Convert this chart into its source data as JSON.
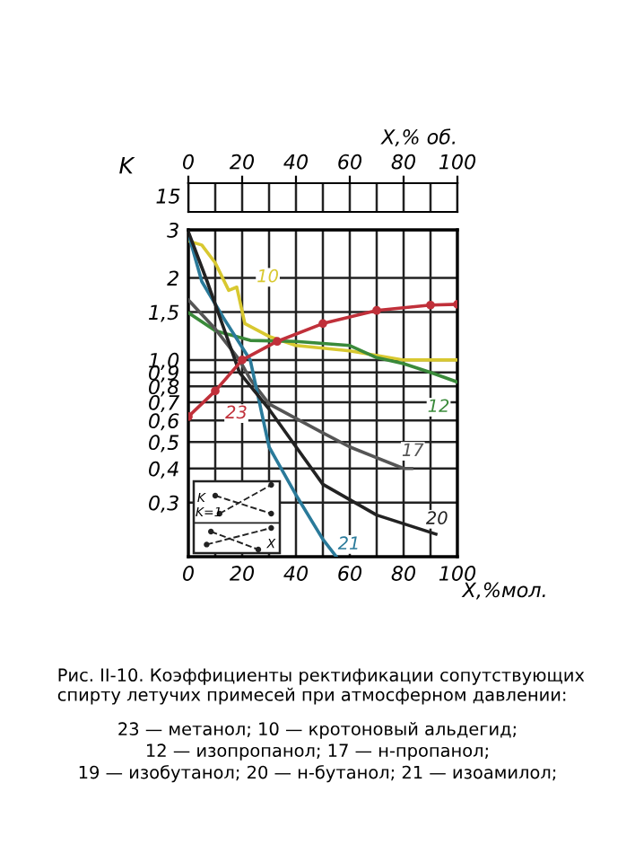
{
  "chart_data": {
    "type": "line",
    "xlabel": "X,%мол.",
    "ylabel": "K",
    "x2label": "X,% об.",
    "log": "y",
    "grid": true,
    "xlim": [
      0,
      100
    ],
    "ylim": [
      0.19,
      3
    ],
    "xticks": [
      0,
      {
        "value": 10,
        "label": null
      },
      20,
      {
        "value": 30,
        "label": null
      },
      40,
      {
        "value": 50,
        "label": null
      },
      60,
      {
        "value": 70,
        "label": null
      },
      80,
      {
        "value": 90,
        "label": null
      },
      100
    ],
    "x2lim": [
      0,
      100
    ],
    "x2ticks": [
      0,
      20,
      40,
      60,
      80,
      100
    ],
    "yticks": [
      {
        "value": 0.3,
        "label": "0,3"
      },
      {
        "value": 0.4,
        "label": "0,4"
      },
      {
        "value": 0.5,
        "label": "0,5"
      },
      {
        "value": 0.6,
        "label": "0,6"
      },
      {
        "value": 0.7,
        "label": "0,7"
      },
      {
        "value": 0.8,
        "label": "0,8"
      },
      {
        "value": 0.9,
        "label": "0,9"
      },
      {
        "value": 1.0,
        "label": "1,0"
      },
      {
        "value": 1.5,
        "label": "1,5"
      },
      2,
      3
    ],
    "series": [
      {
        "name": "23",
        "color": "#c0303a",
        "marker": "circle",
        "x": [
          0,
          10,
          20,
          33,
          50,
          70,
          90,
          100
        ],
        "values": [
          0.62,
          0.77,
          1.0,
          1.17,
          1.36,
          1.52,
          1.59,
          1.6
        ]
      },
      {
        "name": "10",
        "color": "#d8c830",
        "x": [
          0,
          5,
          10,
          15,
          18,
          21,
          30,
          40,
          60,
          80,
          100
        ],
        "values": [
          2.73,
          2.64,
          2.27,
          1.8,
          1.85,
          1.36,
          1.22,
          1.13,
          1.08,
          1.0,
          1.0
        ]
      },
      {
        "name": "12",
        "color": "#3a8a3a",
        "x": [
          0,
          10,
          23,
          40,
          60,
          70,
          80,
          90,
          100
        ],
        "values": [
          1.49,
          1.28,
          1.18,
          1.17,
          1.13,
          1.02,
          0.97,
          0.9,
          0.83
        ]
      },
      {
        "name": "17",
        "color": "#555555",
        "x": [
          0,
          10,
          19,
          23,
          30,
          50,
          60,
          80,
          83
        ],
        "values": [
          1.66,
          1.3,
          1.0,
          0.85,
          0.69,
          0.54,
          0.48,
          0.4,
          0.4
        ]
      },
      {
        "name": "21",
        "color": "#2a7a9a",
        "x": [
          0,
          5,
          13,
          23,
          30,
          40,
          50,
          55
        ],
        "values": [
          2.9,
          1.94,
          1.43,
          1.0,
          0.48,
          0.32,
          0.22,
          0.19
        ]
      },
      {
        "name": "20",
        "color": "#222222",
        "x": [
          0,
          7,
          19,
          30,
          50,
          70,
          92
        ],
        "values": [
          2.95,
          1.94,
          0.9,
          0.66,
          0.35,
          0.27,
          0.23
        ]
      }
    ],
    "annotations": [
      "15",
      "K",
      "K=1",
      "X",
      "Рис. II-10. Коэффициенты ректификации сопутствующих спирту летучих примесей при атмосферном давлении:",
      "23 — метанол; 10 — кротоновый альдегид;",
      "12 — изопропанол; 17 — н-пропанол;",
      "19 — изобутанол; 20 — н-бутанол; 21 — изоамилол;"
    ]
  }
}
